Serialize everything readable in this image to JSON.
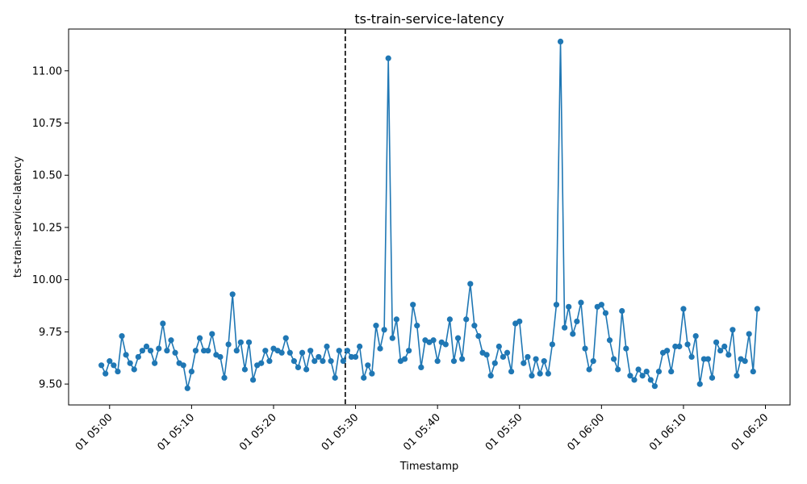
{
  "chart_data": {
    "type": "line",
    "title": "ts-train-service-latency",
    "xlabel": "Timestamp",
    "ylabel": "ts-train-service-latency",
    "x_start": "2024-01-01 04:59",
    "x_interval_seconds": 30,
    "x_ticks": [
      "01 05:00",
      "01 05:10",
      "01 05:20",
      "01 05:30",
      "01 05:40",
      "01 05:50",
      "01 06:00",
      "01 06:10",
      "01 06:20"
    ],
    "y_ticks": [
      "9.50",
      "9.75",
      "10.00",
      "10.25",
      "10.50",
      "10.75",
      "11.00"
    ],
    "xlim": [
      "2024-01-01 04:55",
      "2024-01-01 06:23"
    ],
    "ylim": [
      9.4,
      11.2
    ],
    "grid": false,
    "line_color": "#1f77b4",
    "vline": {
      "x": "2024-01-01 05:28:45",
      "style": "dashed",
      "color": "#000000"
    },
    "values": [
      9.59,
      9.55,
      9.61,
      9.59,
      9.56,
      9.73,
      9.64,
      9.6,
      9.57,
      9.63,
      9.66,
      9.68,
      9.66,
      9.6,
      9.67,
      9.79,
      9.66,
      9.71,
      9.65,
      9.6,
      9.59,
      9.48,
      9.56,
      9.66,
      9.72,
      9.66,
      9.66,
      9.74,
      9.64,
      9.63,
      9.53,
      9.69,
      9.93,
      9.66,
      9.7,
      9.57,
      9.7,
      9.52,
      9.59,
      9.6,
      9.66,
      9.61,
      9.67,
      9.66,
      9.65,
      9.72,
      9.65,
      9.61,
      9.58,
      9.65,
      9.57,
      9.66,
      9.61,
      9.63,
      9.61,
      9.68,
      9.61,
      9.53,
      9.66,
      9.61,
      9.66,
      9.63,
      9.63,
      9.68,
      9.53,
      9.59,
      9.55,
      9.78,
      9.67,
      9.76,
      11.06,
      9.72,
      9.81,
      9.61,
      9.62,
      9.66,
      9.88,
      9.78,
      9.58,
      9.71,
      9.7,
      9.71,
      9.61,
      9.7,
      9.69,
      9.81,
      9.61,
      9.72,
      9.62,
      9.81,
      9.98,
      9.78,
      9.73,
      9.65,
      9.64,
      9.54,
      9.6,
      9.68,
      9.63,
      9.65,
      9.56,
      9.79,
      9.8,
      9.6,
      9.63,
      9.54,
      9.62,
      9.55,
      9.61,
      9.55,
      9.69,
      9.88,
      11.14,
      9.77,
      9.87,
      9.74,
      9.8,
      9.89,
      9.67,
      9.57,
      9.61,
      9.87,
      9.88,
      9.84,
      9.71,
      9.62,
      9.57,
      9.85,
      9.67,
      9.54,
      9.52,
      9.57,
      9.54,
      9.56,
      9.52,
      9.49,
      9.56,
      9.65,
      9.66,
      9.56,
      9.68,
      9.68,
      9.86,
      9.69,
      9.63,
      9.73,
      9.5,
      9.62,
      9.62,
      9.53,
      9.7,
      9.66,
      9.68,
      9.64,
      9.76,
      9.54,
      9.62,
      9.61,
      9.74,
      9.56,
      9.86
    ]
  }
}
